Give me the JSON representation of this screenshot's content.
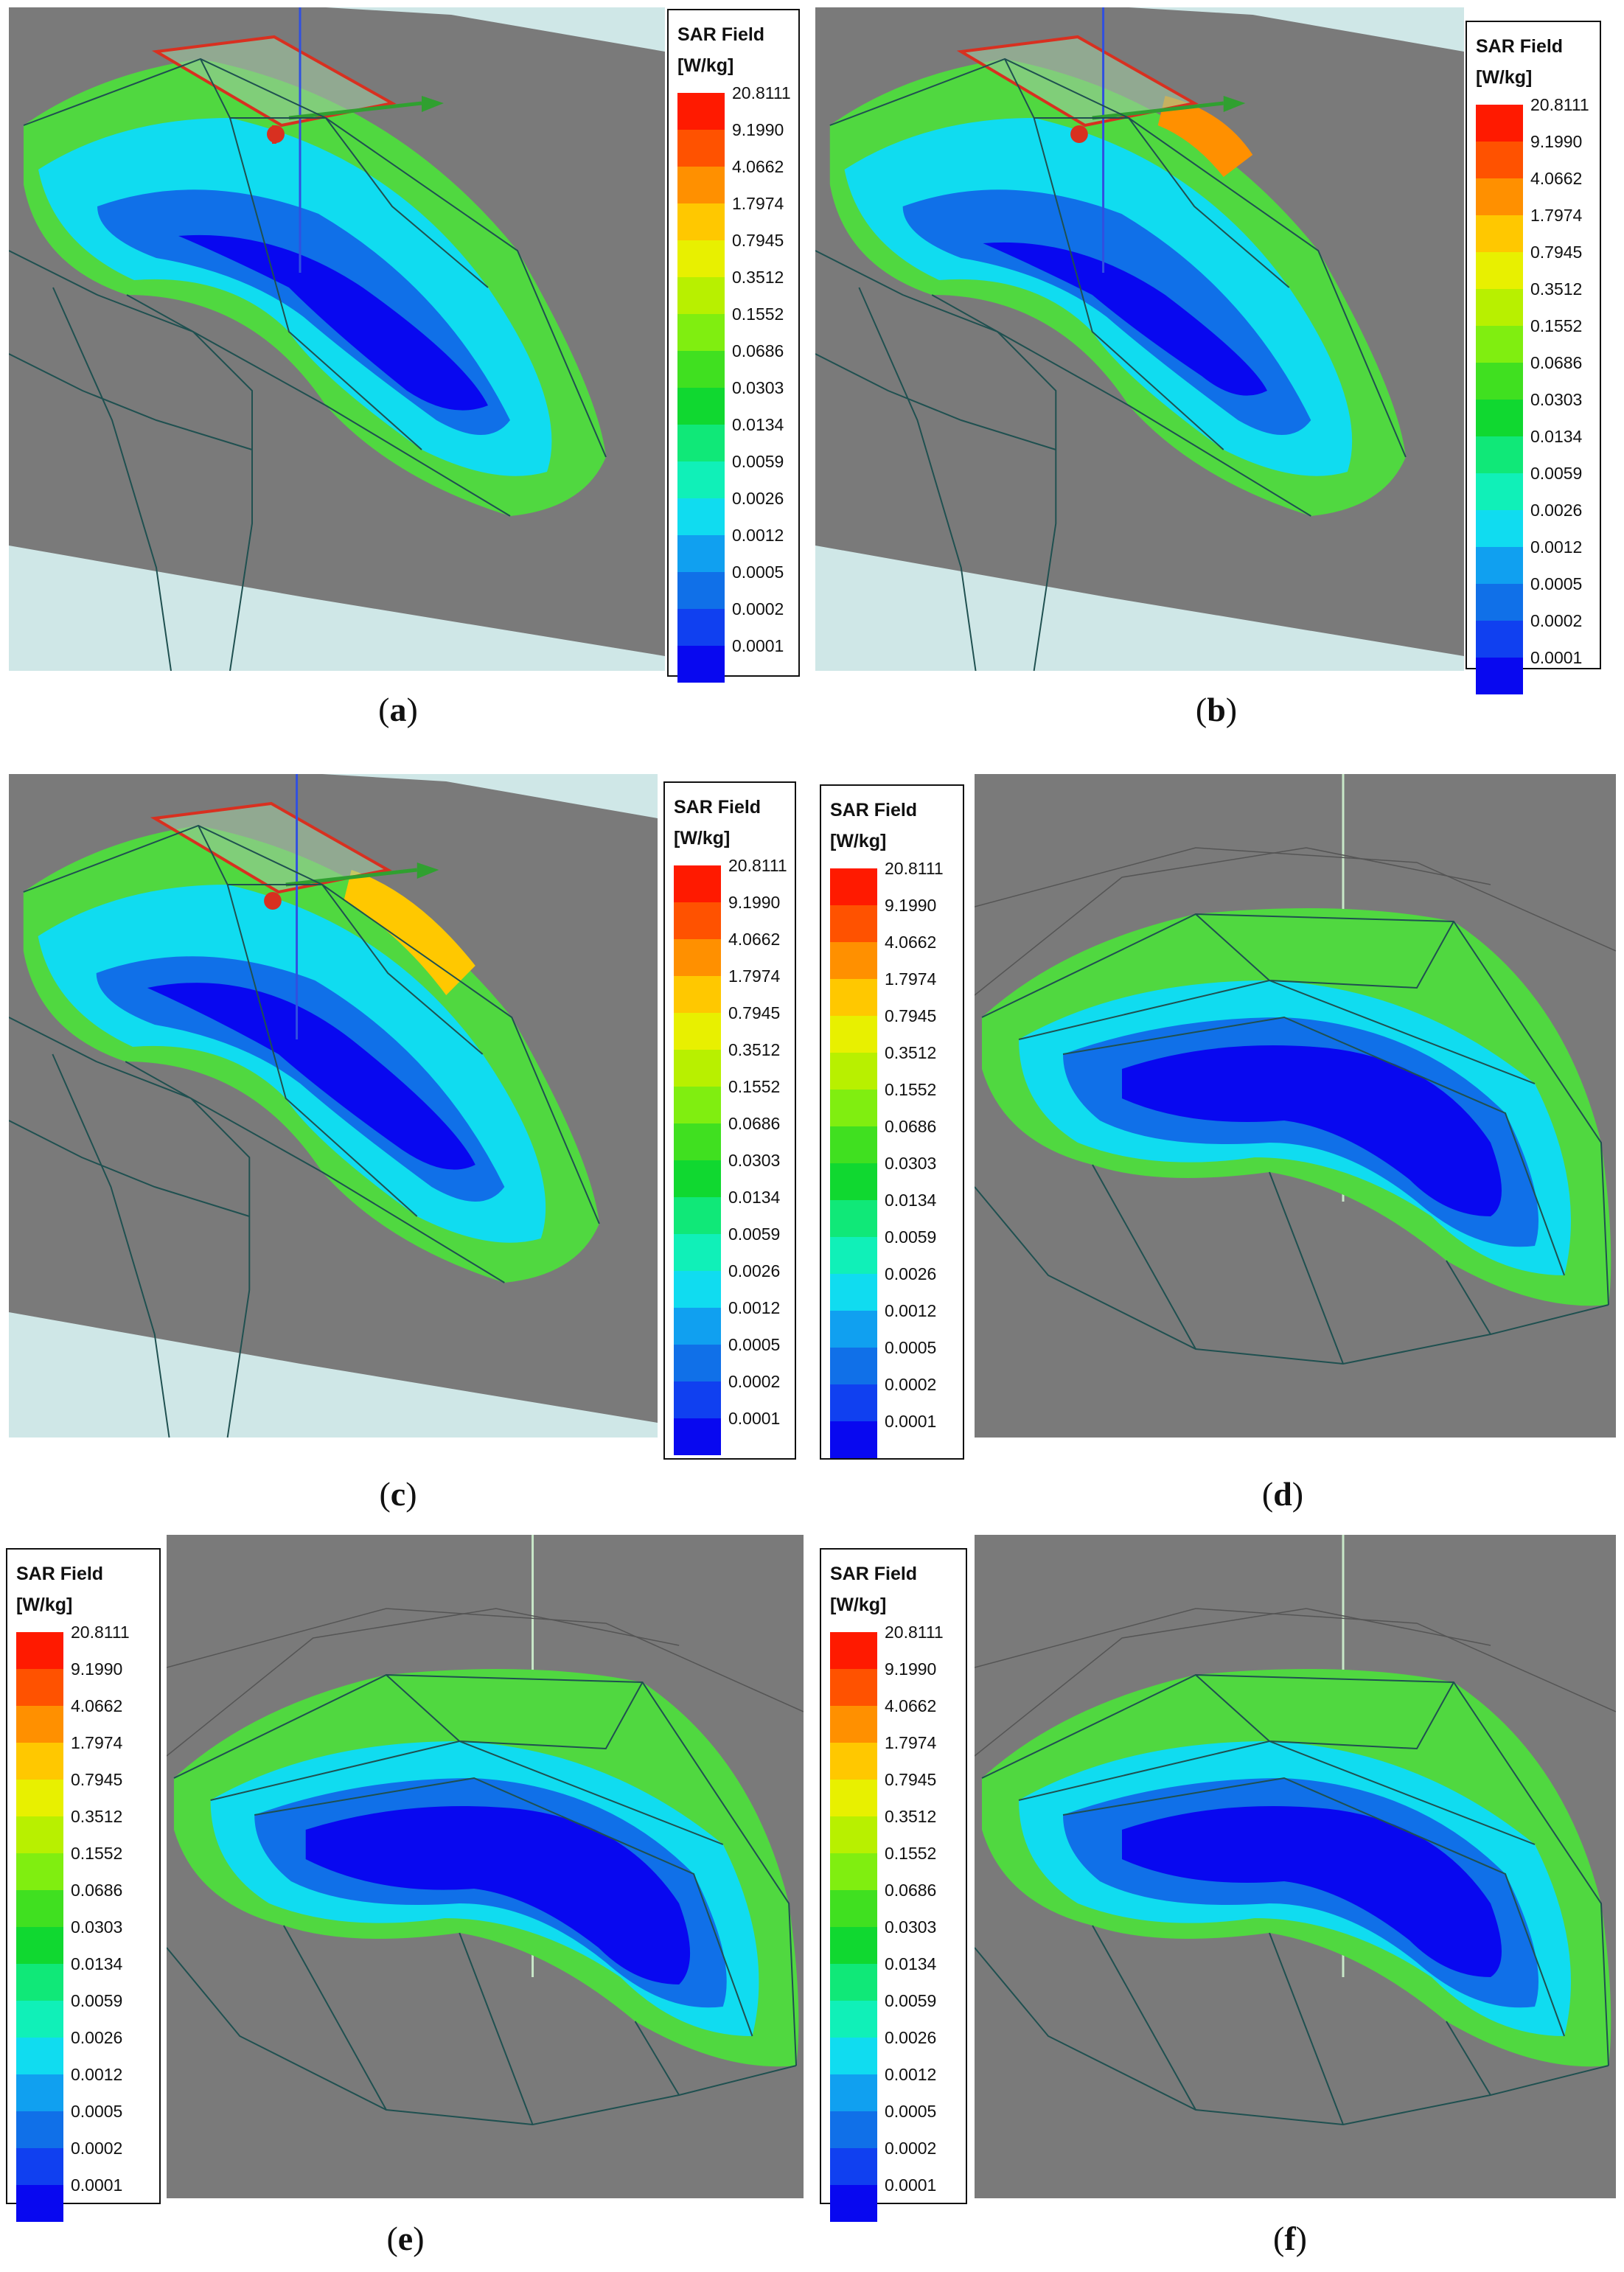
{
  "legend": {
    "title_line1": "SAR Field",
    "title_line2": "[W/kg]",
    "values": [
      "20.8111",
      "9.1990",
      "4.0662",
      "1.7974",
      "0.7945",
      "0.3512",
      "0.1552",
      "0.0686",
      "0.0303",
      "0.0134",
      "0.0059",
      "0.0026",
      "0.0012",
      "0.0005",
      "0.0002",
      "0.0001"
    ],
    "colors": [
      "#ff1a00",
      "#ff5200",
      "#ff9000",
      "#ffc800",
      "#e8f000",
      "#b8f000",
      "#80ee10",
      "#40e020",
      "#10d830",
      "#10e878",
      "#10f0b8",
      "#10dcf0",
      "#10a0f0",
      "#1070e8",
      "#1040f0",
      "#0808f0"
    ]
  },
  "panels": [
    {
      "id": "a",
      "caption": "a",
      "open": "(",
      "close": ")",
      "view": "side-antenna"
    },
    {
      "id": "b",
      "caption": "b",
      "open": "(",
      "close": ")",
      "view": "side-antenna"
    },
    {
      "id": "c",
      "caption": "c",
      "open": "(",
      "close": ")",
      "view": "side-antenna"
    },
    {
      "id": "d",
      "caption": "d",
      "open": "(",
      "close": ")",
      "view": "front"
    },
    {
      "id": "e",
      "caption": "e",
      "open": "(",
      "close": ")",
      "view": "front"
    },
    {
      "id": "f",
      "caption": "f",
      "open": "(",
      "close": ")",
      "view": "front"
    }
  ],
  "colors": {
    "background_gray": "#7a7a7a",
    "mesh": "#1f5050",
    "floor": "#cfe7e7",
    "antenna": "#d83020",
    "axis_green": "#30a030",
    "axis_blue": "#3050e0"
  }
}
